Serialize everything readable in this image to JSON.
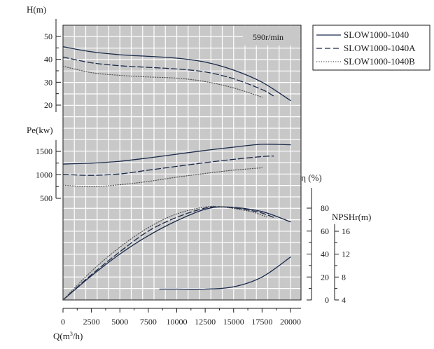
{
  "chart_data": {
    "type": "line",
    "speed_label": "590r/min",
    "legend_position": "top-right",
    "grid": true,
    "grid_background": "#c8c8c8",
    "xlabel": "Q(m³/h)",
    "xlabel_main": "Q(m",
    "xlabel_sup": "3",
    "xlabel_tail": "/h)",
    "x_ticks": [
      0,
      2500,
      5000,
      7500,
      10000,
      12500,
      15000,
      17500,
      20000
    ],
    "x_tick_labels": [
      "0",
      "2500",
      "5000",
      "7500",
      "10000",
      "12500",
      "15000",
      "17500",
      "20000"
    ],
    "xlim": [
      0,
      20000
    ],
    "panels": {
      "head": {
        "ylabel": "H(m)",
        "ylim": [
          20,
          50
        ],
        "ticks": [
          20,
          30,
          40,
          50
        ],
        "tick_labels": [
          "20",
          "30",
          "40",
          "50"
        ]
      },
      "power": {
        "ylabel": "Pe(kw)",
        "ylim": [
          500,
          1500
        ],
        "ticks": [
          500,
          1000,
          1500
        ],
        "tick_labels": [
          "500",
          "1000",
          "1500"
        ]
      },
      "efficiency": {
        "ylabel": "η (%)",
        "ylim": [
          0,
          80
        ],
        "ticks": [
          0,
          20,
          40,
          60,
          80
        ],
        "tick_labels": [
          "0",
          "20",
          "40",
          "60",
          "80"
        ]
      },
      "npshr": {
        "ylabel": "NPSHr(m)",
        "ylim": [
          4,
          16
        ],
        "ticks": [
          4,
          8,
          12,
          16
        ],
        "tick_labels": [
          "4",
          "8",
          "12",
          "16"
        ]
      }
    },
    "series": [
      {
        "name": "SLOW1000-1040",
        "style": "solid",
        "color": "#1a2a4a",
        "head": [
          [
            0,
            45.5
          ],
          [
            2500,
            43.3
          ],
          [
            5000,
            42.0
          ],
          [
            7500,
            41.3
          ],
          [
            10000,
            40.5
          ],
          [
            12500,
            38.8
          ],
          [
            15000,
            35.3
          ],
          [
            17500,
            30.0
          ],
          [
            20000,
            22.0
          ]
        ],
        "power": [
          [
            0,
            1230
          ],
          [
            2500,
            1250
          ],
          [
            5000,
            1290
          ],
          [
            7500,
            1360
          ],
          [
            10000,
            1440
          ],
          [
            12500,
            1520
          ],
          [
            15000,
            1590
          ],
          [
            17500,
            1650
          ],
          [
            20000,
            1640
          ]
        ],
        "efficiency": [
          [
            0,
            0
          ],
          [
            2500,
            21
          ],
          [
            5000,
            40
          ],
          [
            7500,
            56
          ],
          [
            10000,
            69
          ],
          [
            12500,
            79
          ],
          [
            14500,
            81
          ],
          [
            17500,
            77
          ],
          [
            20000,
            68
          ]
        ],
        "npshr": [
          [
            8500,
            5.9
          ],
          [
            10000,
            5.9
          ],
          [
            12500,
            5.9
          ],
          [
            15000,
            6.3
          ],
          [
            17500,
            8.0
          ],
          [
            20000,
            11.5
          ]
        ]
      },
      {
        "name": "SLOW1000-1040A",
        "style": "dashed",
        "color": "#1a2a4a",
        "head": [
          [
            0,
            41.0
          ],
          [
            2500,
            38.5
          ],
          [
            5000,
            37.2
          ],
          [
            7500,
            36.5
          ],
          [
            10000,
            35.8
          ],
          [
            12500,
            34.5
          ],
          [
            15000,
            31.5
          ],
          [
            17500,
            26.8
          ],
          [
            18500,
            24.0
          ]
        ],
        "power": [
          [
            0,
            1010
          ],
          [
            2500,
            990
          ],
          [
            5000,
            1020
          ],
          [
            7500,
            1100
          ],
          [
            10000,
            1180
          ],
          [
            12500,
            1260
          ],
          [
            15000,
            1330
          ],
          [
            17500,
            1390
          ],
          [
            18500,
            1400
          ]
        ],
        "efficiency": [
          [
            0,
            0
          ],
          [
            2500,
            22
          ],
          [
            5000,
            42
          ],
          [
            7500,
            60
          ],
          [
            10000,
            72
          ],
          [
            12500,
            80
          ],
          [
            14200,
            81
          ],
          [
            17000,
            77
          ],
          [
            18500,
            72
          ]
        ],
        "npshr": []
      },
      {
        "name": "SLOW1000-1040B",
        "style": "dotted",
        "color": "#555555",
        "head": [
          [
            0,
            37.0
          ],
          [
            2500,
            34.2
          ],
          [
            5000,
            33.0
          ],
          [
            7500,
            32.3
          ],
          [
            10000,
            31.8
          ],
          [
            12500,
            30.3
          ],
          [
            15000,
            27.5
          ],
          [
            17500,
            23.5
          ]
        ],
        "power": [
          [
            0,
            780
          ],
          [
            2500,
            750
          ],
          [
            5000,
            790
          ],
          [
            7500,
            860
          ],
          [
            10000,
            950
          ],
          [
            12500,
            1030
          ],
          [
            15000,
            1100
          ],
          [
            17500,
            1150
          ]
        ],
        "efficiency": [
          [
            0,
            0
          ],
          [
            2500,
            25
          ],
          [
            5000,
            46
          ],
          [
            7500,
            63
          ],
          [
            10000,
            75
          ],
          [
            12500,
            81
          ],
          [
            14000,
            81
          ],
          [
            16500,
            77
          ],
          [
            18000,
            72
          ]
        ],
        "npshr": []
      }
    ]
  }
}
